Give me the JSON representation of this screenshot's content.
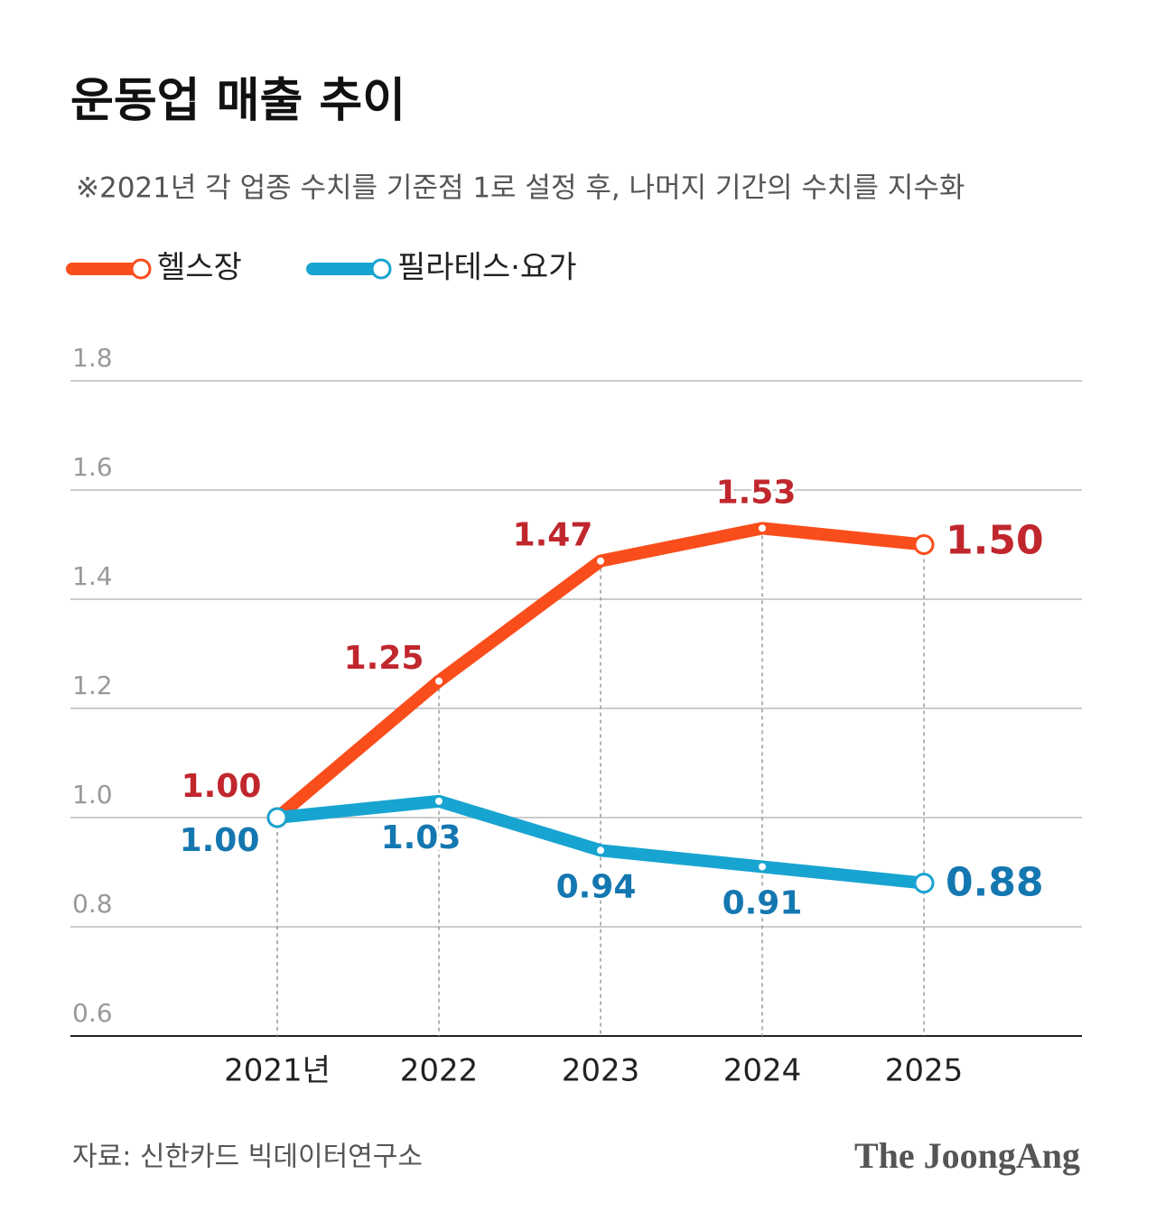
{
  "chart_data": {
    "type": "line",
    "title": "운동업 매출 추이",
    "subtitle": "※2021년 각 업종 수치를 기준점 1로 설정 후, 나머지 기간의 수치를 지수화",
    "categories": [
      "2021년",
      "2022",
      "2023",
      "2024",
      "2025"
    ],
    "series": [
      {
        "name": "헬스장",
        "color": "#fa4d1c",
        "label_color": "#c0272d",
        "values": [
          1,
          1.25,
          1.47,
          1.53,
          1.5
        ],
        "value_labels": [
          "1.00",
          "1.25",
          "1.47",
          "1.53",
          "1.50"
        ]
      },
      {
        "name": "필라테스·요가",
        "color": "#18a4d0",
        "label_color": "#1577b0",
        "values": [
          1,
          1.03,
          0.94,
          0.91,
          0.88
        ],
        "value_labels": [
          "1.00",
          "1.03",
          "0.94",
          "0.91",
          "0.88"
        ]
      }
    ],
    "ylim": [
      0.6,
      1.8
    ],
    "yticks": [
      0.6,
      0.8,
      {
        "value": 1,
        "label": "1.0"
      },
      1.2,
      1.4,
      1.6,
      1.8
    ],
    "grid": true,
    "source": "자료: 신한카드 빅데이터연구소",
    "logo": "The JoongAng"
  }
}
